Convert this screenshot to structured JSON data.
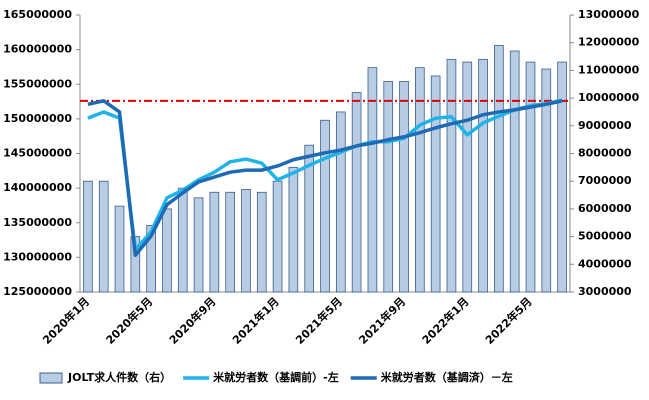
{
  "chart_data": {
    "type": "bar-line",
    "categories": [
      "2020年1月",
      null,
      null,
      null,
      "2020年5月",
      null,
      null,
      null,
      "2020年9月",
      null,
      null,
      null,
      "2021年1月",
      null,
      null,
      null,
      "2021年5月",
      null,
      null,
      null,
      "2021年9月",
      null,
      null,
      null,
      "2022年1月",
      null,
      null,
      null,
      "2022年5月",
      null,
      null
    ],
    "series": [
      {
        "name": "JOLT求人件数（右）",
        "type": "bar",
        "axis": "y2",
        "color": "#b8cce4",
        "values": [
          7000000,
          7000000,
          6100000,
          5000000,
          5400000,
          6000000,
          6750000,
          6400000,
          6600000,
          6600000,
          6700000,
          6600000,
          7000000,
          7500000,
          8300000,
          9200000,
          9500000,
          10200000,
          11100000,
          10600000,
          10600000,
          11100000,
          10800000,
          11400000,
          11300000,
          11400000,
          11900000,
          11700000,
          11300000,
          11050000,
          11300000
        ]
      },
      {
        "name": "米就労者数（基調前）-左",
        "type": "line",
        "color": "#1fb4e8",
        "values": [
          150100000,
          151000000,
          150100000,
          131100000,
          133700000,
          138600000,
          139700000,
          141200000,
          142300000,
          143800000,
          144200000,
          143600000,
          141200000,
          142200000,
          143300000,
          144300000,
          145200000,
          146100000,
          146700000,
          146700000,
          147200000,
          149100000,
          150100000,
          150300000,
          147700000,
          149400000,
          150400000,
          151300000,
          151900000,
          152200000,
          152700000
        ]
      },
      {
        "name": "米就労者数（基調済）－左",
        "type": "line",
        "color": "#1f6ab4",
        "values": [
          152100000,
          152600000,
          151000000,
          130300000,
          133100000,
          137600000,
          139300000,
          140900000,
          141600000,
          142300000,
          142600000,
          142600000,
          143200000,
          144100000,
          144600000,
          145100000,
          145500000,
          146100000,
          146500000,
          147000000,
          147400000,
          148000000,
          148700000,
          149300000,
          149800000,
          150600000,
          151000000,
          151300000,
          151700000,
          152100000,
          152600000
        ]
      }
    ],
    "reference_line": {
      "value": 152600000,
      "color": "#e00000"
    },
    "ylim": [
      125000000,
      165000000
    ],
    "yticks": [
      125000000,
      130000000,
      135000000,
      140000000,
      145000000,
      150000000,
      155000000,
      160000000,
      165000000
    ],
    "y2lim": [
      3000000,
      13000000
    ],
    "y2ticks": [
      3000000,
      4000000,
      5000000,
      6000000,
      7000000,
      8000000,
      9000000,
      10000000,
      11000000,
      12000000,
      13000000
    ]
  }
}
